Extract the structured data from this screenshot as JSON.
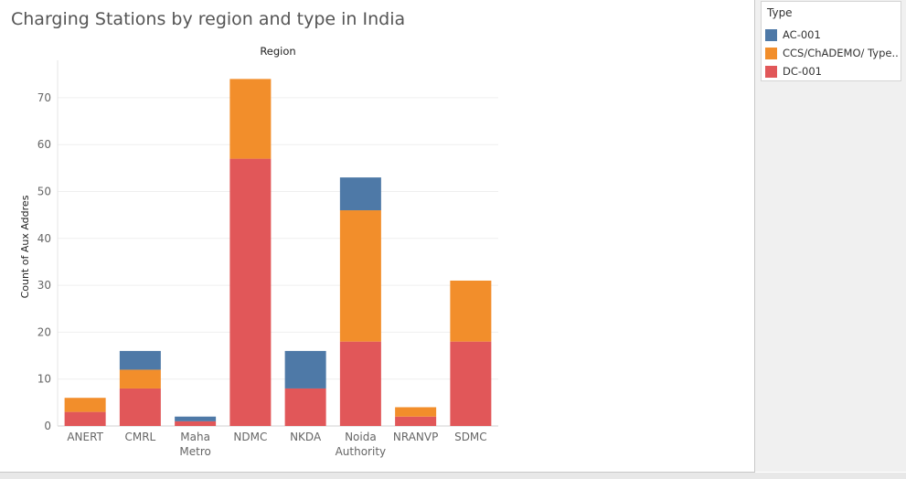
{
  "chart_data": {
    "type": "bar",
    "stacked": true,
    "title": "Charging Stations by region and type in India",
    "column_header": "Region",
    "ylabel": "Count of Aux Addres",
    "xlabel": "",
    "categories": [
      [
        "ANERT"
      ],
      [
        "CMRL"
      ],
      [
        "Maha",
        "Metro"
      ],
      [
        "NDMC"
      ],
      [
        "NKDA"
      ],
      [
        "Noida",
        "Authority"
      ],
      [
        "NRANVP"
      ],
      [
        "SDMC"
      ]
    ],
    "series": [
      {
        "name": "DC-001",
        "color": "#e15759",
        "values": [
          3,
          8,
          1,
          57,
          8,
          18,
          2,
          18
        ]
      },
      {
        "name": "CCS/ChADEMO/ Type..",
        "color": "#f28e2b",
        "values": [
          3,
          4,
          0,
          17,
          0,
          28,
          2,
          13
        ]
      },
      {
        "name": "AC-001",
        "color": "#4e79a7",
        "values": [
          0,
          4,
          1,
          0,
          8,
          7,
          0,
          0
        ]
      }
    ],
    "yticks": [
      0,
      10,
      20,
      30,
      40,
      50,
      60,
      70
    ],
    "ylim": [
      0,
      78
    ],
    "grid": true,
    "legend": {
      "title": "Type",
      "placement": "top-right",
      "items": [
        {
          "name": "AC-001",
          "color": "#4e79a7"
        },
        {
          "name": "CCS/ChADEMO/ Type..",
          "color": "#f28e2b"
        },
        {
          "name": "DC-001",
          "color": "#e15759"
        }
      ]
    }
  }
}
